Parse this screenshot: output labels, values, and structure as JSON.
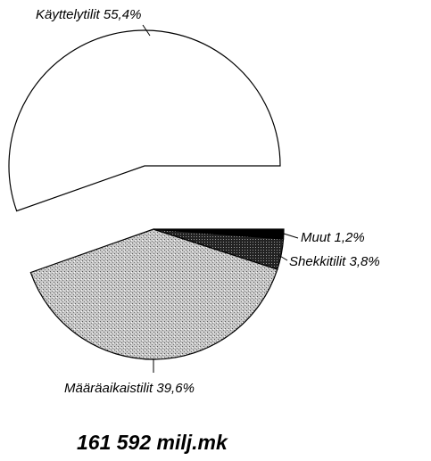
{
  "chart_data": {
    "type": "pie",
    "title": "161 592 milj.mk",
    "categories": [
      "Käyttelytilit",
      "Määräaikaistilit",
      "Shekkitilit",
      "Muut"
    ],
    "values": [
      55.4,
      39.6,
      3.8,
      1.2
    ],
    "value_labels": [
      "55,4%",
      "39,6%",
      "3,8%",
      "1,2%"
    ],
    "colors": [
      "#ffffff",
      "#b8b8b8",
      "#2a2a2a",
      "#000000"
    ]
  }
}
